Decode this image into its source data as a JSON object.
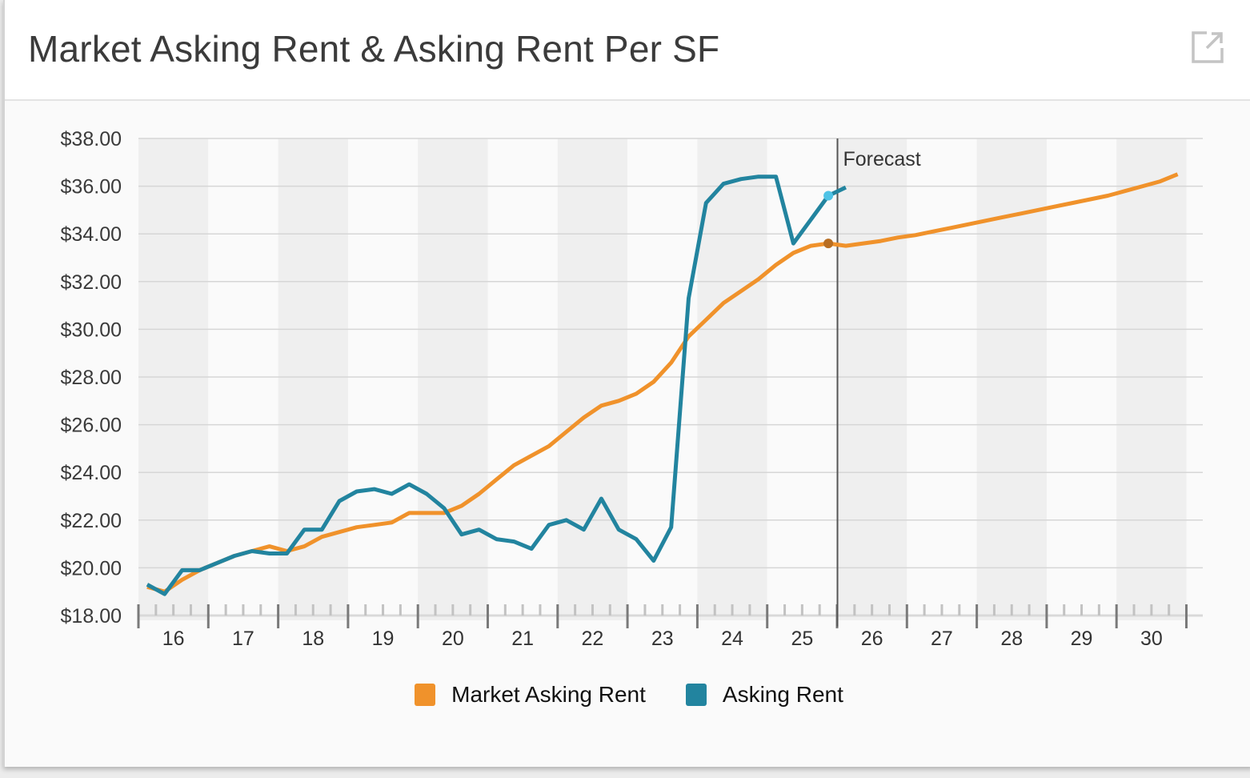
{
  "header": {
    "title": "Market Asking Rent & Asking Rent Per SF",
    "expand_icon": "external-link-icon"
  },
  "legend": {
    "items": [
      {
        "label": "Market Asking Rent",
        "color": "#f0922b"
      },
      {
        "label": "Asking Rent",
        "color": "#22849f"
      }
    ]
  },
  "forecast_label": "Forecast",
  "chart_data": {
    "type": "line",
    "title": "Market Asking Rent & Asking Rent Per SF",
    "xlabel": "",
    "ylabel": "",
    "ylim": [
      18,
      38
    ],
    "y_ticks": [
      "$38.00",
      "$36.00",
      "$34.00",
      "$32.00",
      "$30.00",
      "$28.00",
      "$26.00",
      "$24.00",
      "$22.00",
      "$20.00",
      "$18.00"
    ],
    "x_ticks": [
      "16",
      "17",
      "18",
      "19",
      "20",
      "21",
      "22",
      "23",
      "24",
      "25",
      "26",
      "27",
      "28",
      "29",
      "30"
    ],
    "grid": true,
    "legend_position": "bottom",
    "annotations": [
      {
        "type": "vline",
        "label": "Forecast",
        "x": "2025 Q3"
      }
    ],
    "x": [
      "2016 Q1",
      "2016 Q2",
      "2016 Q3",
      "2016 Q4",
      "2017 Q1",
      "2017 Q2",
      "2017 Q3",
      "2017 Q4",
      "2018 Q1",
      "2018 Q2",
      "2018 Q3",
      "2018 Q4",
      "2019 Q1",
      "2019 Q2",
      "2019 Q3",
      "2019 Q4",
      "2020 Q1",
      "2020 Q2",
      "2020 Q3",
      "2020 Q4",
      "2021 Q1",
      "2021 Q2",
      "2021 Q3",
      "2021 Q4",
      "2022 Q1",
      "2022 Q2",
      "2022 Q3",
      "2022 Q4",
      "2023 Q1",
      "2023 Q2",
      "2023 Q3",
      "2023 Q4",
      "2024 Q1",
      "2024 Q2",
      "2024 Q3",
      "2024 Q4",
      "2025 Q1",
      "2025 Q2",
      "2025 Q3",
      "2025 Q4",
      "2026 Q1",
      "2026 Q2",
      "2026 Q3",
      "2026 Q4",
      "2027 Q1",
      "2027 Q2",
      "2027 Q3",
      "2027 Q4",
      "2028 Q1",
      "2028 Q2",
      "2028 Q3",
      "2028 Q4",
      "2029 Q1",
      "2029 Q2",
      "2029 Q3",
      "2029 Q4",
      "2030 Q1",
      "2030 Q2",
      "2030 Q3",
      "2030 Q4"
    ],
    "series": [
      {
        "name": "Market Asking Rent",
        "color": "#f0922b",
        "values": [
          19.2,
          19.0,
          19.5,
          19.9,
          20.2,
          20.5,
          20.7,
          20.9,
          20.7,
          20.9,
          21.3,
          21.5,
          21.7,
          21.8,
          21.9,
          22.3,
          22.3,
          22.3,
          22.6,
          23.1,
          23.7,
          24.3,
          24.7,
          25.1,
          25.7,
          26.3,
          26.8,
          27.0,
          27.3,
          27.8,
          28.6,
          29.7,
          30.4,
          31.1,
          31.6,
          32.1,
          32.7,
          33.2,
          33.5,
          33.6,
          33.5,
          33.6,
          33.7,
          33.85,
          33.95,
          34.1,
          34.25,
          34.4,
          34.55,
          34.7,
          34.85,
          35.0,
          35.15,
          35.3,
          35.45,
          35.6,
          35.8,
          36.0,
          36.2,
          36.5
        ]
      },
      {
        "name": "Asking Rent",
        "color": "#22849f",
        "values": [
          19.3,
          18.9,
          19.9,
          19.9,
          20.2,
          20.5,
          20.7,
          20.6,
          20.6,
          21.6,
          21.6,
          22.8,
          23.2,
          23.3,
          23.1,
          23.5,
          23.1,
          22.5,
          21.4,
          21.6,
          21.2,
          21.1,
          20.8,
          21.8,
          22.0,
          21.6,
          22.9,
          21.6,
          21.2,
          20.3,
          21.7,
          31.3,
          35.3,
          36.1,
          36.3,
          36.4,
          36.4,
          33.6,
          34.6,
          35.6,
          35.95
        ]
      }
    ]
  }
}
